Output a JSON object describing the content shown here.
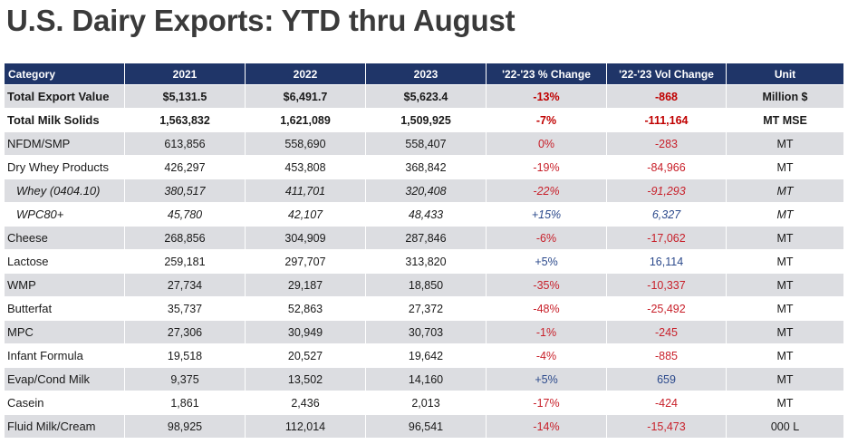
{
  "title": "U.S. Dairy Exports: YTD thru August",
  "chart_data": {
    "type": "table",
    "columns": [
      "Category",
      "2021",
      "2022",
      "2023",
      "'22-'23 % Change",
      "'22-'23 Vol Change",
      "Unit"
    ],
    "rows": [
      {
        "category": "Total Export Value",
        "y2021": "$5,131.5",
        "y2022": "$6,491.7",
        "y2023": "$5,623.4",
        "pct_change": "-13%",
        "vol_change": "-868",
        "unit": "Million $",
        "style": "bold",
        "indent": false
      },
      {
        "category": "Total Milk Solids",
        "y2021": "1,563,832",
        "y2022": "1,621,089",
        "y2023": "1,509,925",
        "pct_change": "-7%",
        "vol_change": "-111,164",
        "unit": "MT MSE",
        "style": "bold",
        "indent": false
      },
      {
        "category": "NFDM/SMP",
        "y2021": "613,856",
        "y2022": "558,690",
        "y2023": "558,407",
        "pct_change": "0%",
        "vol_change": "-283",
        "unit": "MT",
        "style": "normal",
        "indent": false
      },
      {
        "category": "Dry Whey Products",
        "y2021": "426,297",
        "y2022": "453,808",
        "y2023": "368,842",
        "pct_change": "-19%",
        "vol_change": "-84,966",
        "unit": "MT",
        "style": "normal",
        "indent": false
      },
      {
        "category": "Whey (0404.10)",
        "y2021": "380,517",
        "y2022": "411,701",
        "y2023": "320,408",
        "pct_change": "-22%",
        "vol_change": "-91,293",
        "unit": "MT",
        "style": "italic",
        "indent": true
      },
      {
        "category": "WPC80+",
        "y2021": "45,780",
        "y2022": "42,107",
        "y2023": "48,433",
        "pct_change": "+15%",
        "vol_change": "6,327",
        "unit": "MT",
        "style": "italic",
        "indent": true
      },
      {
        "category": "Cheese",
        "y2021": "268,856",
        "y2022": "304,909",
        "y2023": "287,846",
        "pct_change": "-6%",
        "vol_change": "-17,062",
        "unit": "MT",
        "style": "normal",
        "indent": false
      },
      {
        "category": "Lactose",
        "y2021": "259,181",
        "y2022": "297,707",
        "y2023": "313,820",
        "pct_change": "+5%",
        "vol_change": "16,114",
        "unit": "MT",
        "style": "normal",
        "indent": false
      },
      {
        "category": "WMP",
        "y2021": "27,734",
        "y2022": "29,187",
        "y2023": "18,850",
        "pct_change": "-35%",
        "vol_change": "-10,337",
        "unit": "MT",
        "style": "normal",
        "indent": false
      },
      {
        "category": "Butterfat",
        "y2021": "35,737",
        "y2022": "52,863",
        "y2023": "27,372",
        "pct_change": "-48%",
        "vol_change": "-25,492",
        "unit": "MT",
        "style": "normal",
        "indent": false
      },
      {
        "category": "MPC",
        "y2021": "27,306",
        "y2022": "30,949",
        "y2023": "30,703",
        "pct_change": "-1%",
        "vol_change": "-245",
        "unit": "MT",
        "style": "normal",
        "indent": false
      },
      {
        "category": "Infant Formula",
        "y2021": "19,518",
        "y2022": "20,527",
        "y2023": "19,642",
        "pct_change": "-4%",
        "vol_change": "-885",
        "unit": "MT",
        "style": "normal",
        "indent": false
      },
      {
        "category": "Evap/Cond Milk",
        "y2021": "9,375",
        "y2022": "13,502",
        "y2023": "14,160",
        "pct_change": "+5%",
        "vol_change": "659",
        "unit": "MT",
        "style": "normal",
        "indent": false
      },
      {
        "category": "Casein",
        "y2021": "1,861",
        "y2022": "2,436",
        "y2023": "2,013",
        "pct_change": "-17%",
        "vol_change": "-424",
        "unit": "MT",
        "style": "normal",
        "indent": false
      },
      {
        "category": "Fluid Milk/Cream",
        "y2021": "98,925",
        "y2022": "112,014",
        "y2023": "96,541",
        "pct_change": "-14%",
        "vol_change": "-15,473",
        "unit": "000 L",
        "style": "normal",
        "indent": false
      }
    ]
  },
  "colors": {
    "header_bg": "#1f3568",
    "row_shade": "#dcdde1",
    "negative": "#c8202a",
    "positive": "#2c4a8c"
  }
}
